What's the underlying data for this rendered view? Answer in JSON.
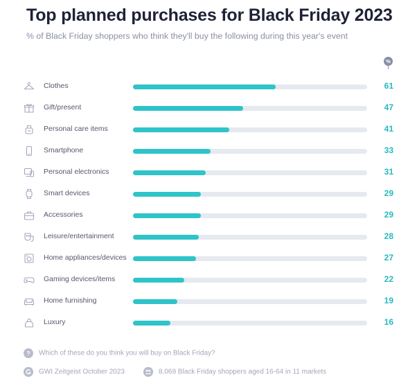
{
  "chart_data": {
    "type": "bar",
    "orientation": "horizontal",
    "title": "Top planned purchases for Black Friday 2023",
    "subtitle": "% of Black Friday shoppers who think they'll buy the following during this year's event",
    "unit_badge": "%",
    "categories": [
      "Clothes",
      "Gift/present",
      "Personal care items",
      "Smartphone",
      "Personal electronics",
      "Smart devices",
      "Accessories",
      "Leisure/entertainment",
      "Home appliances/devices",
      "Gaming devices/items",
      "Home furnishing",
      "Luxury"
    ],
    "icons": [
      "hanger-icon",
      "gift-icon",
      "care-products-icon",
      "smartphone-icon",
      "electronics-icon",
      "smartwatch-icon",
      "accessories-icon",
      "entertainment-icon",
      "appliance-icon",
      "gamepad-icon",
      "sofa-icon",
      "luxury-bag-icon"
    ],
    "values": [
      61,
      47,
      41,
      33,
      31,
      29,
      29,
      28,
      27,
      22,
      19,
      16
    ],
    "xlim": [
      0,
      100
    ],
    "grid": false,
    "bar_color": "#2ec4c9",
    "track_color": "#e6e9ef",
    "value_color": "#27b9bf"
  },
  "footer": {
    "question": "Which of these do you think you will buy on Black Friday?",
    "source": "GWI Zeitgeist October 2023",
    "sample": "8,069 Black Friday shoppers aged 16-64 in 11 markets",
    "question_icon": "?"
  }
}
